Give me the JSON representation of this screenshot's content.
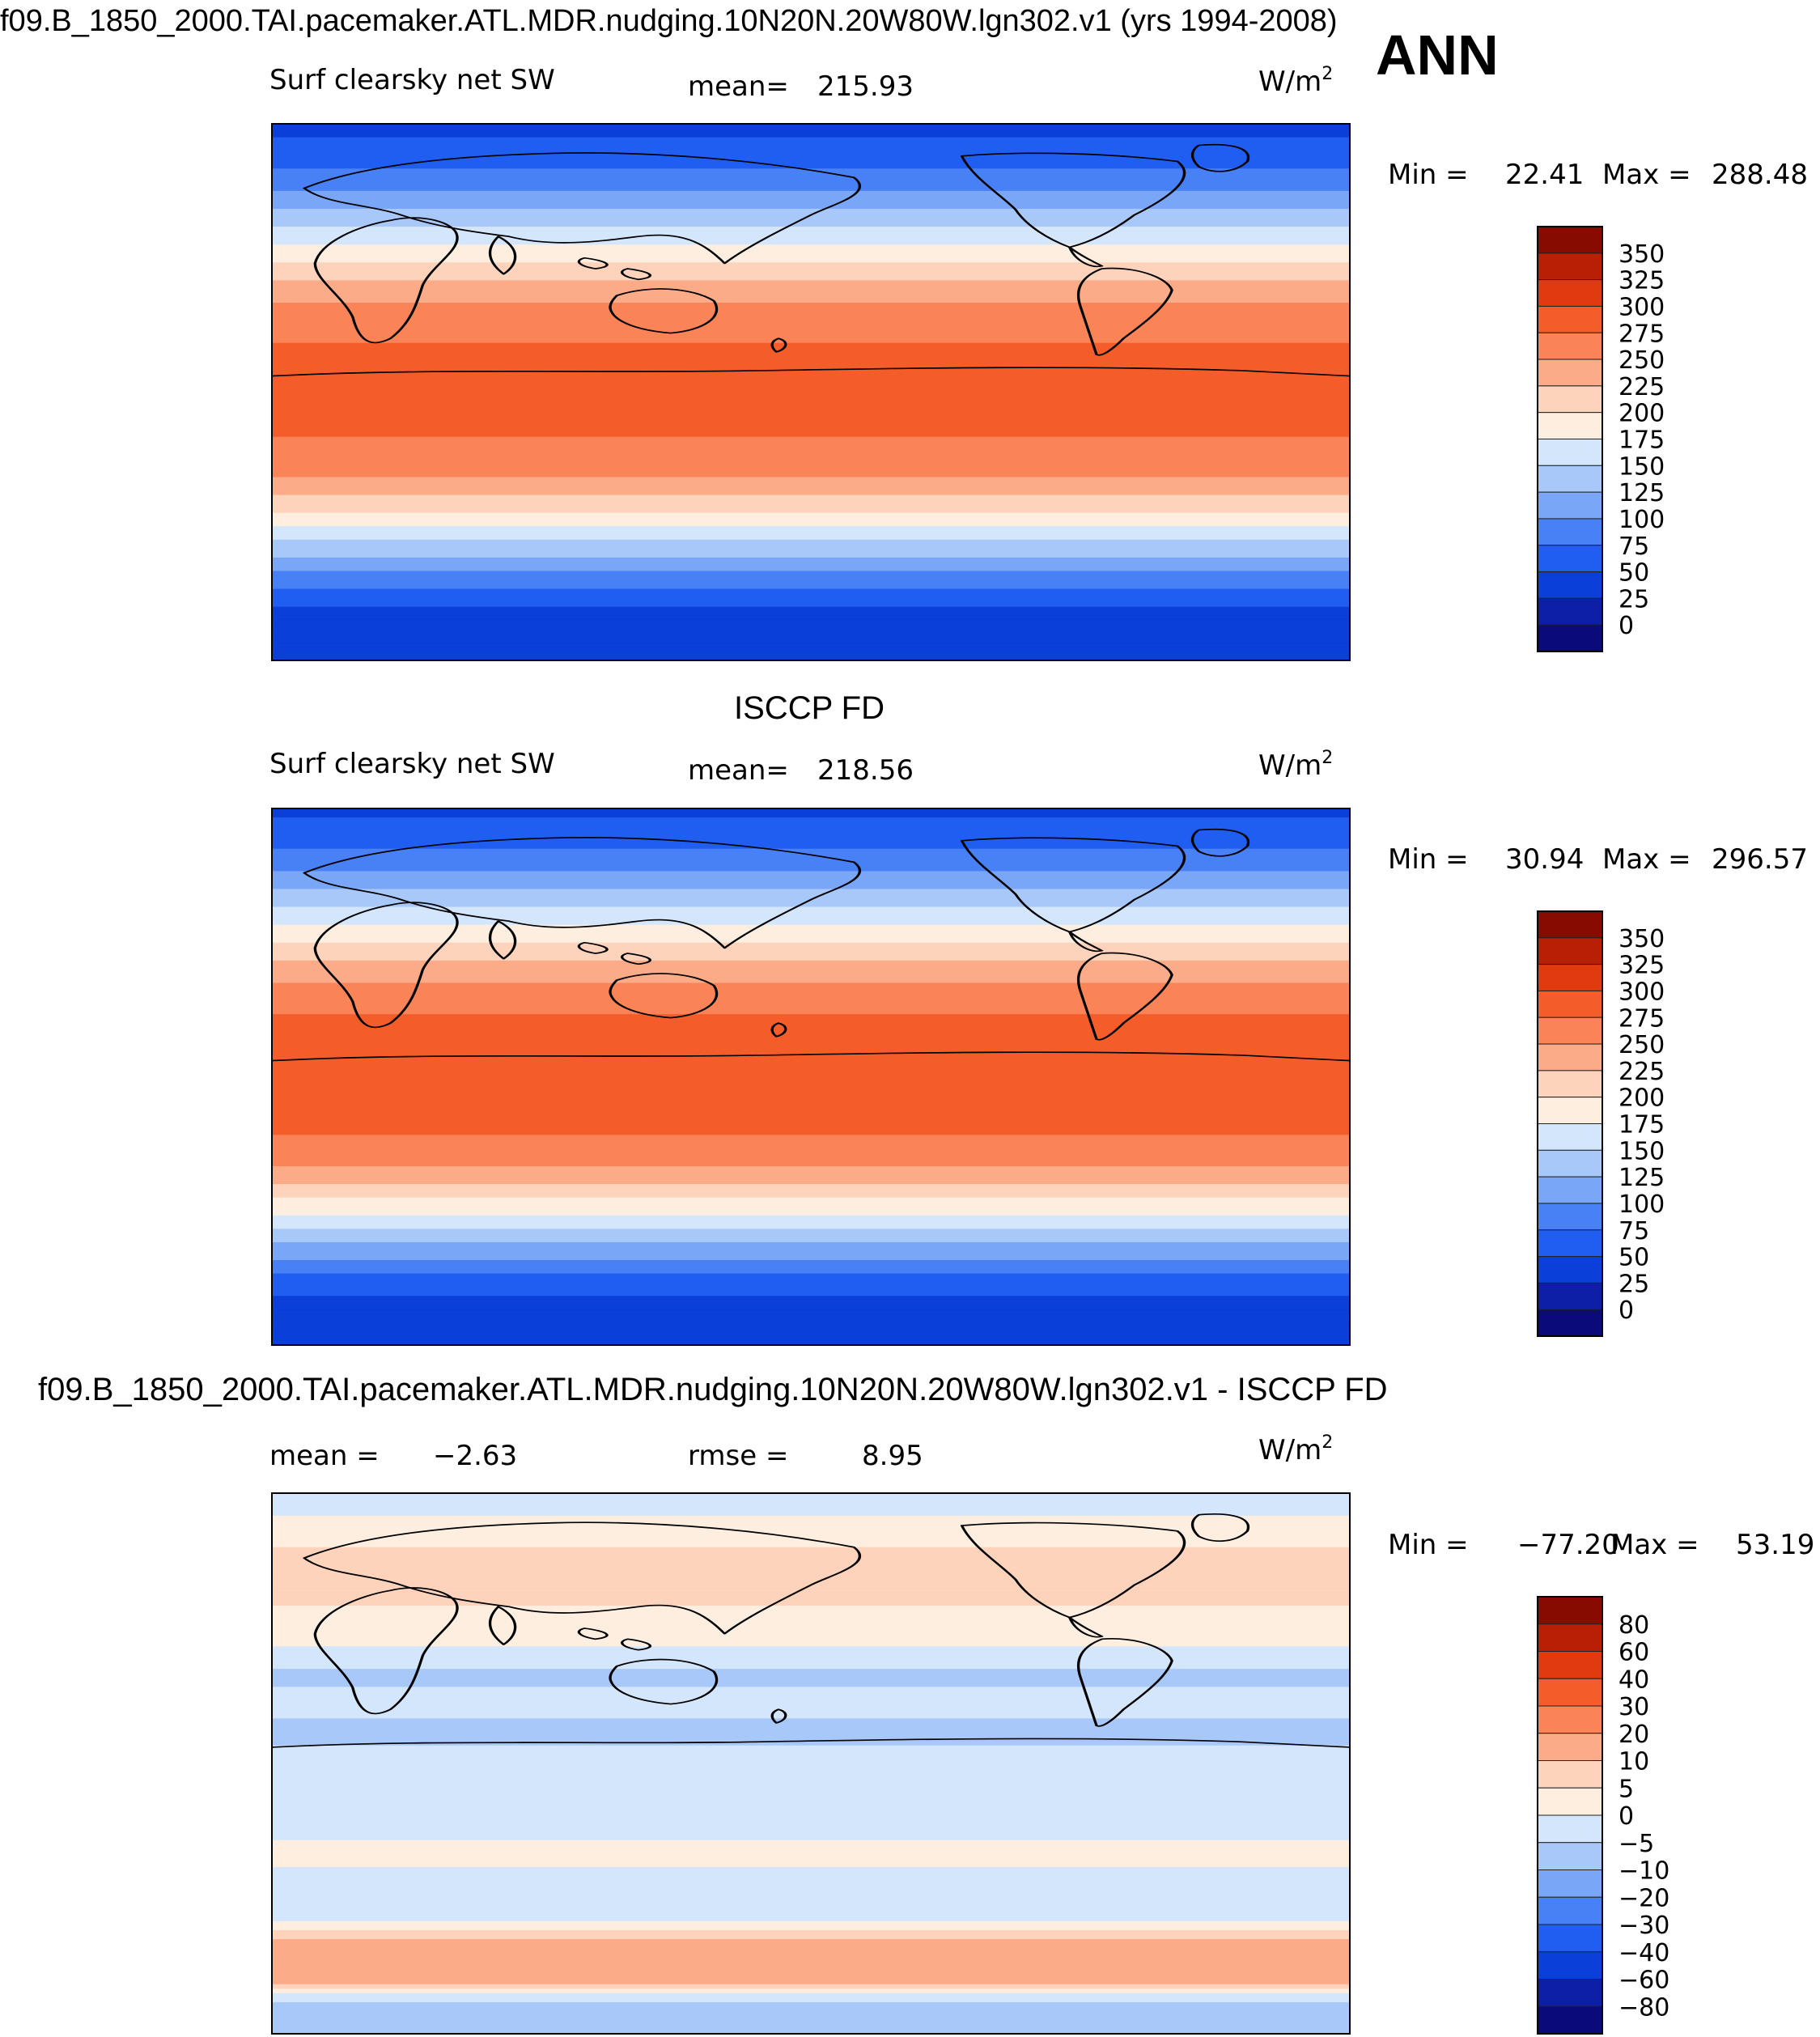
{
  "page_title": "f09.B_1850_2000.TAI.pacemaker.ATL.MDR.nudging.10N20N.20W80W.lgn302.v1 (yrs 1994-2008)",
  "season_label": "ANN",
  "colors": {
    "scale_main": [
      "#0a0a7a",
      "#0c1fa6",
      "#0a3fd8",
      "#1f5ef0",
      "#4880f5",
      "#7aa6f7",
      "#a9c8fa",
      "#d4e6fc",
      "#fdeee0",
      "#fdd3bc",
      "#fcab88",
      "#fa8458",
      "#f45d2a",
      "#e23a0f",
      "#b81f05",
      "#870b00"
    ],
    "scale_diff": [
      "#0a0a7a",
      "#0c1fa6",
      "#0a3fd8",
      "#1f5ef0",
      "#4880f5",
      "#7aa6f7",
      "#a9c8fa",
      "#d4e6fc",
      "#fdeee0",
      "#fdd3bc",
      "#fcab88",
      "#fa8458",
      "#f45d2a",
      "#e23a0f",
      "#b81f05",
      "#870b00"
    ]
  },
  "chart_data": [
    {
      "type": "heatmap",
      "title": "",
      "variable": "Surf clearsky net SW",
      "mean_label": "mean=",
      "mean_value": "215.93",
      "units": "W/m",
      "units_sup": "2",
      "min_label": "Min =",
      "min_value": "22.41",
      "max_label": "Max =",
      "max_value": "288.48",
      "colorbar_levels": [
        "350",
        "325",
        "300",
        "275",
        "250",
        "225",
        "200",
        "175",
        "150",
        "125",
        "100",
        "75",
        "50",
        "25",
        "0"
      ],
      "zonal_profile": {
        "latitude": [
          90,
          80,
          70,
          60,
          50,
          40,
          30,
          20,
          10,
          0,
          -10,
          -20,
          -30,
          -40,
          -50,
          -60,
          -70,
          -80,
          -90
        ],
        "value": [
          40,
          60,
          90,
          130,
          175,
          215,
          250,
          272,
          280,
          282,
          280,
          270,
          245,
          200,
          150,
          100,
          55,
          30,
          25
        ]
      }
    },
    {
      "type": "heatmap",
      "title": "ISCCP FD",
      "variable": "Surf clearsky net SW",
      "mean_label": "mean=",
      "mean_value": "218.56",
      "units": "W/m",
      "units_sup": "2",
      "min_label": "Min =",
      "min_value": "30.94",
      "max_label": "Max =",
      "max_value": "296.57",
      "colorbar_levels": [
        "350",
        "325",
        "300",
        "275",
        "250",
        "225",
        "200",
        "175",
        "150",
        "125",
        "100",
        "75",
        "50",
        "25",
        "0"
      ],
      "zonal_profile": {
        "latitude": [
          90,
          80,
          70,
          60,
          50,
          40,
          30,
          20,
          10,
          0,
          -10,
          -20,
          -30,
          -40,
          -50,
          -60,
          -70,
          -80,
          -90
        ],
        "value": [
          45,
          65,
          95,
          135,
          180,
          220,
          255,
          278,
          287,
          290,
          286,
          275,
          250,
          205,
          155,
          105,
          60,
          35,
          30
        ]
      }
    },
    {
      "type": "heatmap",
      "title": "f09.B_1850_2000.TAI.pacemaker.ATL.MDR.nudging.10N20N.20W80W.lgn302.v1 - ISCCP FD",
      "variable": "",
      "mean_label": "mean =",
      "mean_value": "−2.63",
      "rmse_label": "rmse =",
      "rmse_value": "8.95",
      "units": "W/m",
      "units_sup": "2",
      "min_label": "Min =",
      "min_value": "−77.20",
      "max_label": "Max =",
      "max_value": "53.19",
      "colorbar_levels": [
        "80",
        "60",
        "40",
        "30",
        "20",
        "10",
        "5",
        "0",
        "−5",
        "−10",
        "−20",
        "−30",
        "−40",
        "−60",
        "−80"
      ],
      "zonal_profile": {
        "latitude": [
          90,
          80,
          70,
          60,
          50,
          40,
          30,
          20,
          10,
          0,
          -10,
          -20,
          -30,
          -40,
          -50,
          -60,
          -70,
          -80,
          -90
        ],
        "value": [
          -5,
          2,
          6,
          8,
          4,
          1,
          -6,
          -4,
          -6,
          -3,
          -4,
          -3,
          2,
          -3,
          -4,
          12,
          20,
          -8,
          -6
        ]
      }
    }
  ]
}
